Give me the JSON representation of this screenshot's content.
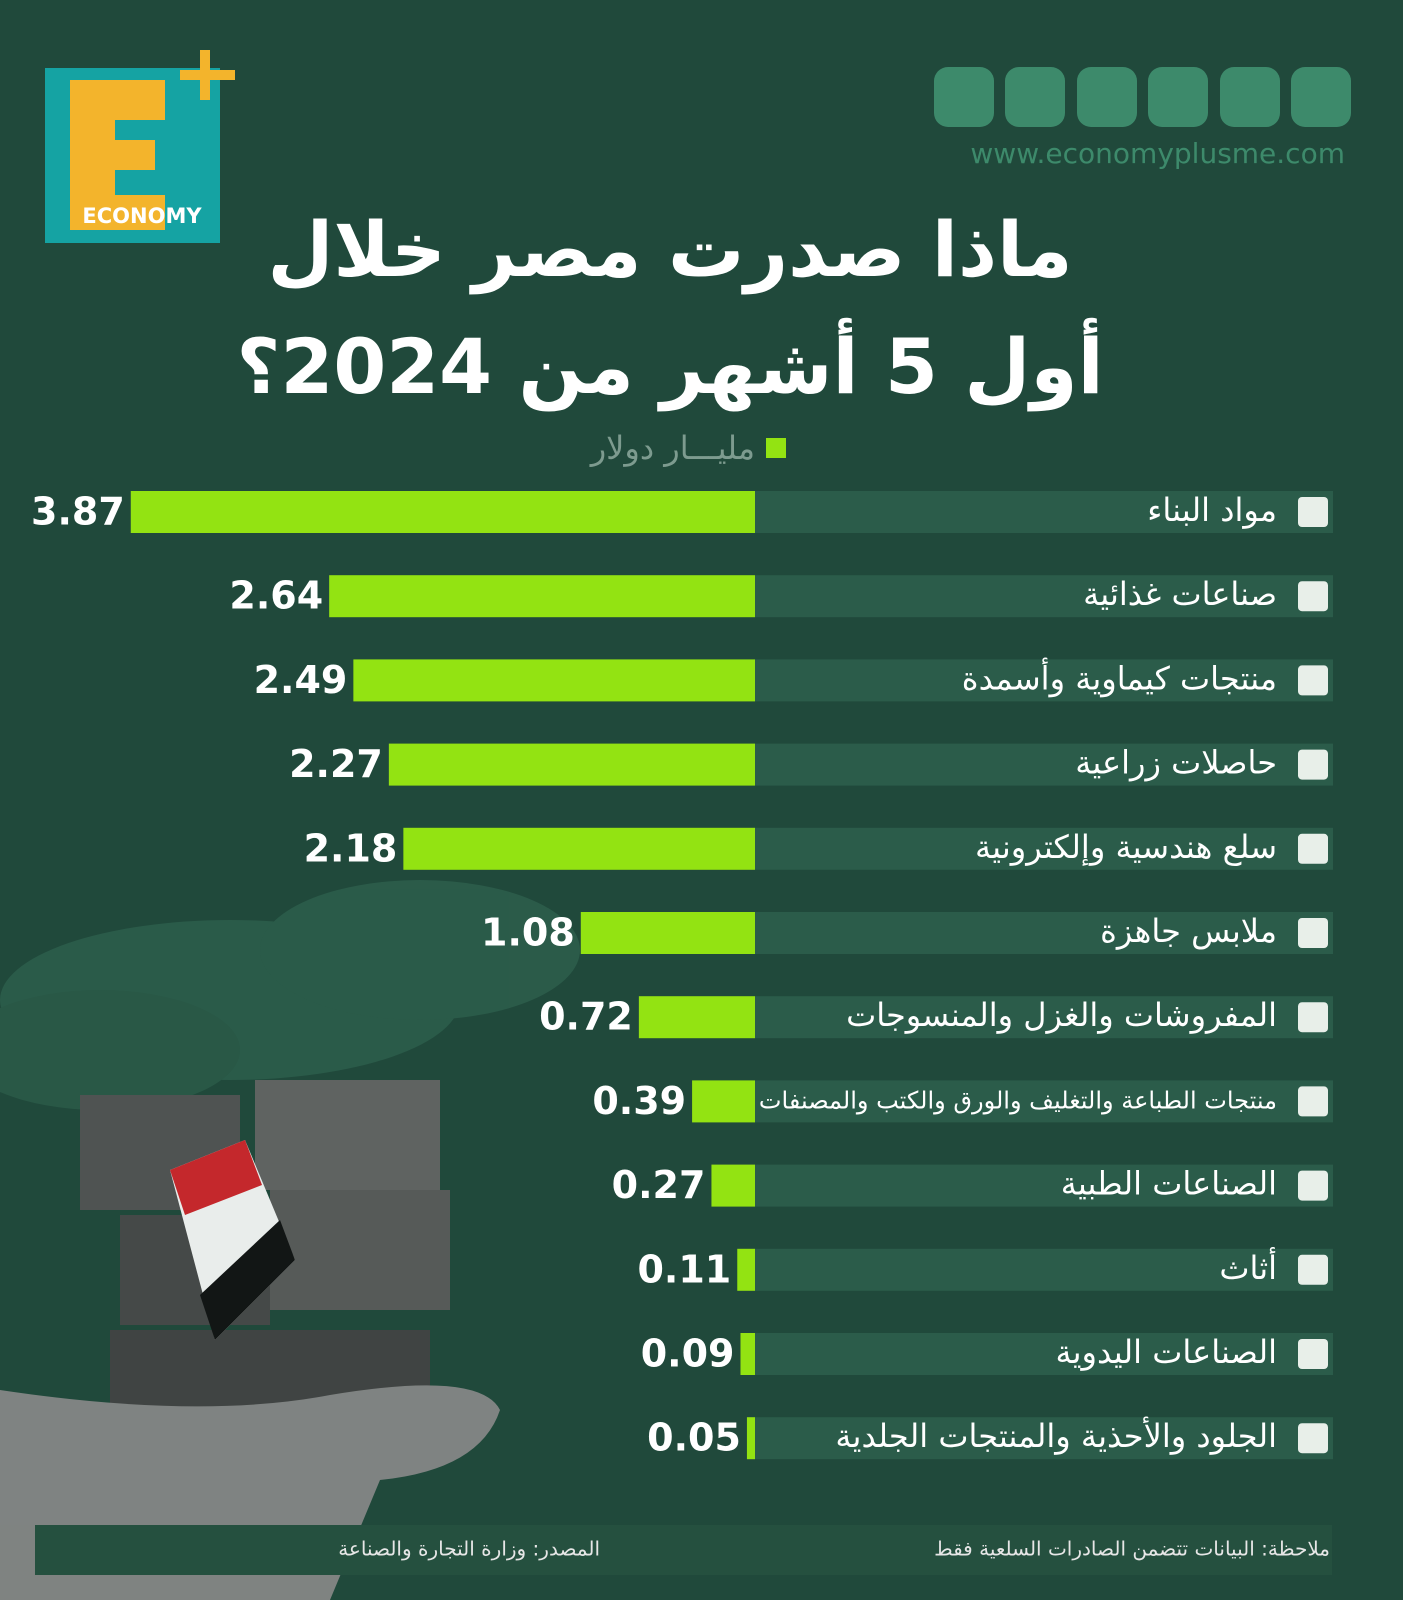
{
  "header": {
    "logo": "ECONOMY",
    "website": "www.economyplusme.com"
  },
  "chart_data": {
    "type": "hbar",
    "title": [
      "ماذا صدرت مصر خلال",
      "أول 5 أشهر من 2024؟"
    ],
    "categories": [
      "مواد البناء",
      "صناعات غذائية",
      "منتجات كيماوية وأسمدة",
      "حاصلات زراعية",
      "سلع هندسية وإلكترونية",
      "ملابس جاهزة",
      "المفروشات والغزل والمنسوجات",
      "منتجات الطباعة والتغليف والورق والكتب والمصنفات الفنية",
      "الصناعات الطبية",
      "أثاث",
      "الصناعات اليدوية",
      "الجلود والأحذية والمنتجات الجلدية"
    ],
    "series": [
      {
        "name": "مليـــار دولار",
        "color": "#93e312",
        "values": [
          3.87,
          2.64,
          2.49,
          2.27,
          2.18,
          1.08,
          0.72,
          0.39,
          0.27,
          0.11,
          0.09,
          0.05
        ]
      }
    ]
  },
  "footer": {
    "note": "ملاحظة: البيانات تتضمن الصادرات السلعية فقط",
    "source": "المصدر: وزارة التجارة والصناعة"
  }
}
